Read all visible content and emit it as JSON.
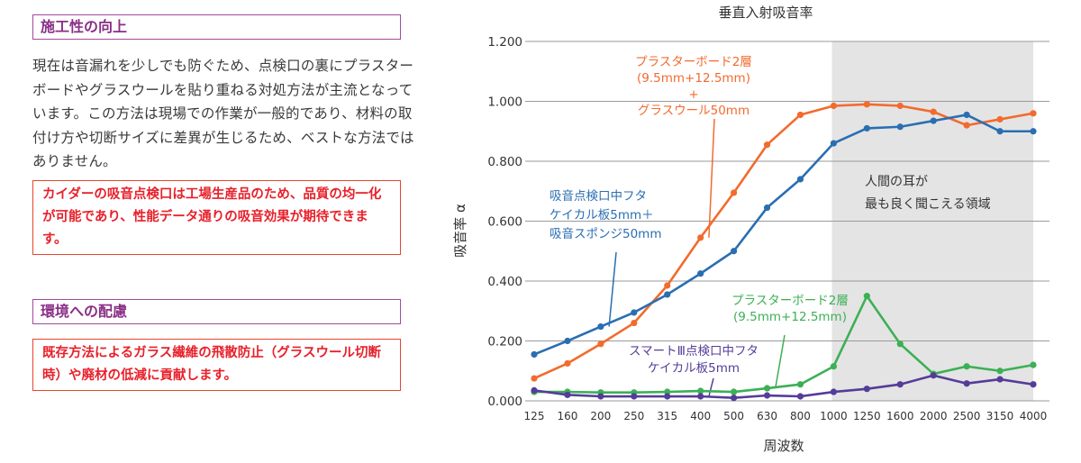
{
  "left": {
    "section1_title": "施工性の向上",
    "section1_body": "現在は音漏れを少しでも防ぐため、点検口の裏にプラスターボードやグラスウールを貼り重ねる対処方法が主流となっています。この方法は現場での作業が一般的であり、材料の取付け方や切断サイズに差異が生じるため、ベストな方法ではありません。",
    "section1_highlight": "カイダーの吸音点検口は工場生産品のため、品質の均一化が可能であり、性能データ通りの吸音効果が期待できます。",
    "section2_title": "環境への配慮",
    "section2_highlight": "既存方法によるガラス繊維の飛散防止（グラスウール切断時）や廃材の低減に貢献します。"
  },
  "chart_data": {
    "type": "line",
    "title": "垂直入射吸音率",
    "xlabel": "周波数",
    "ylabel": "吸音率 α",
    "categories": [
      "125",
      "160",
      "200",
      "250",
      "315",
      "400",
      "500",
      "630",
      "800",
      "1000",
      "1250",
      "1600",
      "2000",
      "2500",
      "3150",
      "4000"
    ],
    "ylim": [
      0,
      1.2
    ],
    "yticks": [
      "0.000",
      "0.200",
      "0.400",
      "0.600",
      "0.800",
      "1.000",
      "1.200"
    ],
    "grid": true,
    "highlight_region": {
      "from": "1000",
      "to": "4000",
      "label_line1": "人間の耳が",
      "label_line2": "最も良く聞こえる領域"
    },
    "series": [
      {
        "name": "プラスターボード2層 (9.5mm+12.5mm) + グラスウール50mm",
        "color": "#f26b2d",
        "label_lines": [
          "プラスターボード2層",
          "(9.5mm+12.5mm)",
          "+",
          "グラスウール50mm"
        ],
        "values": [
          0.075,
          0.125,
          0.19,
          0.26,
          0.385,
          0.545,
          0.695,
          0.855,
          0.955,
          0.985,
          0.99,
          0.985,
          0.965,
          0.92,
          0.94,
          0.96
        ]
      },
      {
        "name": "吸音点検口中フタ ケイカル板5mm＋吸音スポンジ50mm",
        "color": "#2a6eb2",
        "label_lines": [
          "吸音点検口中フタ",
          "ケイカル板5mm＋",
          "吸音スポンジ50mm"
        ],
        "values": [
          0.155,
          0.2,
          0.248,
          0.295,
          0.355,
          0.425,
          0.5,
          0.645,
          0.74,
          0.86,
          0.91,
          0.915,
          0.935,
          0.955,
          0.9,
          0.9
        ]
      },
      {
        "name": "プラスターボード2層 (9.5mm+12.5mm)",
        "color": "#3cb055",
        "label_lines": [
          "プラスターボード2層",
          "(9.5mm+12.5mm)"
        ],
        "values": [
          0.03,
          0.03,
          0.028,
          0.028,
          0.03,
          0.033,
          0.03,
          0.042,
          0.055,
          0.115,
          0.35,
          0.19,
          0.09,
          0.115,
          0.1,
          0.12
        ]
      },
      {
        "name": "スマートⅢ点検口中フタ ケイカル板5mm",
        "color": "#553c99",
        "label_lines": [
          "スマートⅢ点検口中フタ",
          "ケイカル板5mm"
        ],
        "values": [
          0.035,
          0.02,
          0.015,
          0.015,
          0.015,
          0.015,
          0.01,
          0.018,
          0.015,
          0.03,
          0.04,
          0.055,
          0.085,
          0.058,
          0.072,
          0.055
        ]
      }
    ]
  }
}
